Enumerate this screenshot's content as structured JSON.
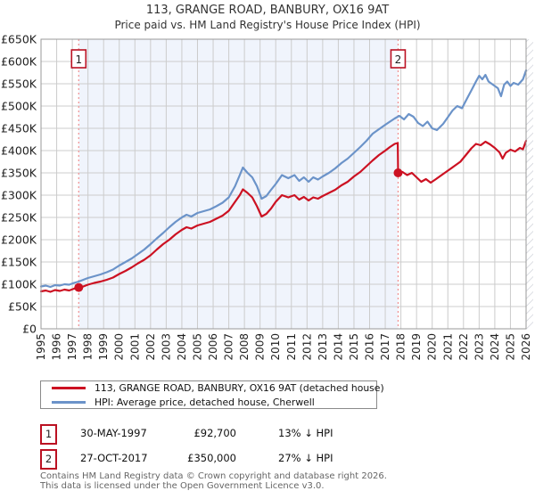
{
  "title": "113, GRANGE ROAD, BANBURY, OX16 9AT",
  "subtitle": "Price paid vs. HM Land Registry's House Price Index (HPI)",
  "colors": {
    "price_paid_line": "#cc1122",
    "hpi_line": "#6b93c9",
    "sale_dashed_line": "#f19090",
    "marker_box_border": "#bb1122",
    "shaded_region": "#f0f4fc",
    "grid": "#cccccc",
    "plot_border": "#999999"
  },
  "chart_data": {
    "type": "line",
    "title": "113, GRANGE ROAD, BANBURY, OX16 9AT — Price paid vs. HM Land Registry's House Price Index (HPI)",
    "xlabel": "",
    "ylabel": "",
    "xlim": [
      1995,
      2026
    ],
    "ylim": [
      0,
      650000
    ],
    "grid": true,
    "x_ticks": [
      1995,
      1996,
      1997,
      1998,
      1999,
      2000,
      2001,
      2002,
      2003,
      2004,
      2005,
      2006,
      2007,
      2008,
      2009,
      2010,
      2011,
      2012,
      2013,
      2014,
      2015,
      2016,
      2017,
      2018,
      2019,
      2020,
      2021,
      2022,
      2023,
      2024,
      2025,
      2026
    ],
    "y_tick_labels": [
      "£0",
      "£50K",
      "£100K",
      "£150K",
      "£200K",
      "£250K",
      "£300K",
      "£350K",
      "£400K",
      "£450K",
      "£500K",
      "£550K",
      "£600K",
      "£650K"
    ],
    "y_tick_step": 50000,
    "shaded_region_x": [
      1997.41,
      2017.82
    ],
    "sale_markers": [
      {
        "label": "1",
        "x": 1997.41,
        "y": 92700
      },
      {
        "label": "2",
        "x": 2017.82,
        "y": 350000
      }
    ],
    "series": [
      {
        "name": "113, GRANGE ROAD, BANBURY, OX16 9AT (detached house)",
        "color": "#cc1122",
        "points": [
          [
            1995.0,
            84000
          ],
          [
            1995.3,
            86000
          ],
          [
            1995.6,
            83000
          ],
          [
            1995.9,
            87000
          ],
          [
            1996.2,
            85000
          ],
          [
            1996.5,
            88000
          ],
          [
            1996.8,
            86000
          ],
          [
            1997.1,
            90000
          ],
          [
            1997.41,
            92700
          ],
          [
            1997.7,
            95000
          ],
          [
            1998.0,
            99000
          ],
          [
            1998.4,
            103000
          ],
          [
            1998.8,
            106000
          ],
          [
            1999.2,
            110000
          ],
          [
            1999.6,
            115000
          ],
          [
            2000.0,
            123000
          ],
          [
            2000.4,
            130000
          ],
          [
            2000.8,
            138000
          ],
          [
            2001.2,
            147000
          ],
          [
            2001.6,
            155000
          ],
          [
            2002.0,
            165000
          ],
          [
            2002.4,
            178000
          ],
          [
            2002.8,
            190000
          ],
          [
            2003.2,
            200000
          ],
          [
            2003.6,
            212000
          ],
          [
            2004.0,
            222000
          ],
          [
            2004.3,
            228000
          ],
          [
            2004.6,
            225000
          ],
          [
            2005.0,
            232000
          ],
          [
            2005.4,
            236000
          ],
          [
            2005.8,
            240000
          ],
          [
            2006.2,
            247000
          ],
          [
            2006.6,
            254000
          ],
          [
            2007.0,
            265000
          ],
          [
            2007.4,
            285000
          ],
          [
            2007.7,
            300000
          ],
          [
            2007.9,
            313000
          ],
          [
            2008.2,
            305000
          ],
          [
            2008.5,
            295000
          ],
          [
            2008.8,
            275000
          ],
          [
            2009.1,
            252000
          ],
          [
            2009.4,
            258000
          ],
          [
            2009.7,
            270000
          ],
          [
            2010.0,
            285000
          ],
          [
            2010.4,
            300000
          ],
          [
            2010.8,
            295000
          ],
          [
            2011.2,
            300000
          ],
          [
            2011.5,
            290000
          ],
          [
            2011.8,
            296000
          ],
          [
            2012.1,
            288000
          ],
          [
            2012.4,
            295000
          ],
          [
            2012.7,
            292000
          ],
          [
            2013.0,
            298000
          ],
          [
            2013.4,
            305000
          ],
          [
            2013.8,
            312000
          ],
          [
            2014.2,
            322000
          ],
          [
            2014.6,
            330000
          ],
          [
            2015.0,
            342000
          ],
          [
            2015.4,
            352000
          ],
          [
            2015.8,
            365000
          ],
          [
            2016.2,
            378000
          ],
          [
            2016.6,
            390000
          ],
          [
            2017.0,
            400000
          ],
          [
            2017.3,
            408000
          ],
          [
            2017.6,
            415000
          ],
          [
            2017.8,
            417000
          ],
          [
            2017.82,
            350000
          ],
          [
            2018.1,
            352000
          ],
          [
            2018.4,
            345000
          ],
          [
            2018.7,
            350000
          ],
          [
            2019.0,
            340000
          ],
          [
            2019.3,
            330000
          ],
          [
            2019.6,
            336000
          ],
          [
            2019.9,
            328000
          ],
          [
            2020.2,
            335000
          ],
          [
            2020.6,
            345000
          ],
          [
            2021.0,
            355000
          ],
          [
            2021.4,
            365000
          ],
          [
            2021.8,
            375000
          ],
          [
            2022.2,
            392000
          ],
          [
            2022.5,
            405000
          ],
          [
            2022.8,
            415000
          ],
          [
            2023.1,
            412000
          ],
          [
            2023.4,
            420000
          ],
          [
            2023.7,
            414000
          ],
          [
            2024.0,
            406000
          ],
          [
            2024.3,
            396000
          ],
          [
            2024.5,
            382000
          ],
          [
            2024.7,
            395000
          ],
          [
            2025.0,
            402000
          ],
          [
            2025.3,
            398000
          ],
          [
            2025.6,
            406000
          ],
          [
            2025.8,
            403000
          ],
          [
            2026.0,
            422000
          ]
        ]
      },
      {
        "name": "HPI: Average price, detached house, Cherwell",
        "color": "#6b93c9",
        "points": [
          [
            1995.0,
            95000
          ],
          [
            1995.3,
            97000
          ],
          [
            1995.6,
            94000
          ],
          [
            1995.9,
            98000
          ],
          [
            1996.2,
            97000
          ],
          [
            1996.5,
            100000
          ],
          [
            1996.8,
            99000
          ],
          [
            1997.1,
            103000
          ],
          [
            1997.41,
            106000
          ],
          [
            1997.7,
            110000
          ],
          [
            1998.0,
            114000
          ],
          [
            1998.4,
            118000
          ],
          [
            1998.8,
            122000
          ],
          [
            1999.2,
            127000
          ],
          [
            1999.6,
            133000
          ],
          [
            2000.0,
            142000
          ],
          [
            2000.4,
            150000
          ],
          [
            2000.8,
            158000
          ],
          [
            2001.2,
            168000
          ],
          [
            2001.6,
            178000
          ],
          [
            2002.0,
            190000
          ],
          [
            2002.4,
            203000
          ],
          [
            2002.8,
            215000
          ],
          [
            2003.2,
            228000
          ],
          [
            2003.6,
            240000
          ],
          [
            2004.0,
            250000
          ],
          [
            2004.3,
            256000
          ],
          [
            2004.6,
            252000
          ],
          [
            2005.0,
            260000
          ],
          [
            2005.4,
            264000
          ],
          [
            2005.8,
            268000
          ],
          [
            2006.2,
            275000
          ],
          [
            2006.6,
            283000
          ],
          [
            2007.0,
            295000
          ],
          [
            2007.4,
            320000
          ],
          [
            2007.7,
            345000
          ],
          [
            2007.9,
            362000
          ],
          [
            2008.2,
            350000
          ],
          [
            2008.5,
            340000
          ],
          [
            2008.8,
            320000
          ],
          [
            2009.1,
            292000
          ],
          [
            2009.4,
            298000
          ],
          [
            2009.7,
            312000
          ],
          [
            2010.0,
            325000
          ],
          [
            2010.4,
            345000
          ],
          [
            2010.8,
            338000
          ],
          [
            2011.2,
            345000
          ],
          [
            2011.5,
            332000
          ],
          [
            2011.8,
            340000
          ],
          [
            2012.1,
            330000
          ],
          [
            2012.4,
            340000
          ],
          [
            2012.7,
            335000
          ],
          [
            2013.0,
            342000
          ],
          [
            2013.4,
            350000
          ],
          [
            2013.8,
            360000
          ],
          [
            2014.2,
            372000
          ],
          [
            2014.6,
            382000
          ],
          [
            2015.0,
            395000
          ],
          [
            2015.4,
            408000
          ],
          [
            2015.8,
            422000
          ],
          [
            2016.2,
            438000
          ],
          [
            2016.6,
            448000
          ],
          [
            2017.0,
            458000
          ],
          [
            2017.3,
            465000
          ],
          [
            2017.6,
            472000
          ],
          [
            2017.9,
            478000
          ],
          [
            2018.2,
            470000
          ],
          [
            2018.5,
            482000
          ],
          [
            2018.8,
            476000
          ],
          [
            2019.1,
            462000
          ],
          [
            2019.4,
            455000
          ],
          [
            2019.7,
            465000
          ],
          [
            2020.0,
            450000
          ],
          [
            2020.3,
            446000
          ],
          [
            2020.7,
            460000
          ],
          [
            2021.0,
            475000
          ],
          [
            2021.3,
            490000
          ],
          [
            2021.6,
            500000
          ],
          [
            2021.9,
            495000
          ],
          [
            2022.2,
            515000
          ],
          [
            2022.5,
            535000
          ],
          [
            2022.8,
            555000
          ],
          [
            2023.0,
            568000
          ],
          [
            2023.2,
            560000
          ],
          [
            2023.4,
            570000
          ],
          [
            2023.6,
            555000
          ],
          [
            2023.8,
            550000
          ],
          [
            2024.0,
            545000
          ],
          [
            2024.2,
            540000
          ],
          [
            2024.4,
            522000
          ],
          [
            2024.6,
            548000
          ],
          [
            2024.8,
            555000
          ],
          [
            2025.0,
            545000
          ],
          [
            2025.2,
            552000
          ],
          [
            2025.5,
            548000
          ],
          [
            2025.8,
            560000
          ],
          [
            2026.0,
            580000
          ]
        ]
      }
    ],
    "legend_position": "bottom"
  },
  "legend": {
    "items": [
      {
        "label": "113, GRANGE ROAD, BANBURY, OX16 9AT (detached house)",
        "color": "#cc1122"
      },
      {
        "label": "HPI: Average price, detached house, Cherwell",
        "color": "#6b93c9"
      }
    ]
  },
  "transactions": [
    {
      "num": "1",
      "date": "30-MAY-1997",
      "price": "£92,700",
      "hpi": "13% ↓ HPI"
    },
    {
      "num": "2",
      "date": "27-OCT-2017",
      "price": "£350,000",
      "hpi": "27% ↓ HPI"
    }
  ],
  "footer": {
    "line1": "Contains HM Land Registry data © Crown copyright and database right 2026.",
    "line2": "This data is licensed under the Open Government Licence v3.0."
  }
}
